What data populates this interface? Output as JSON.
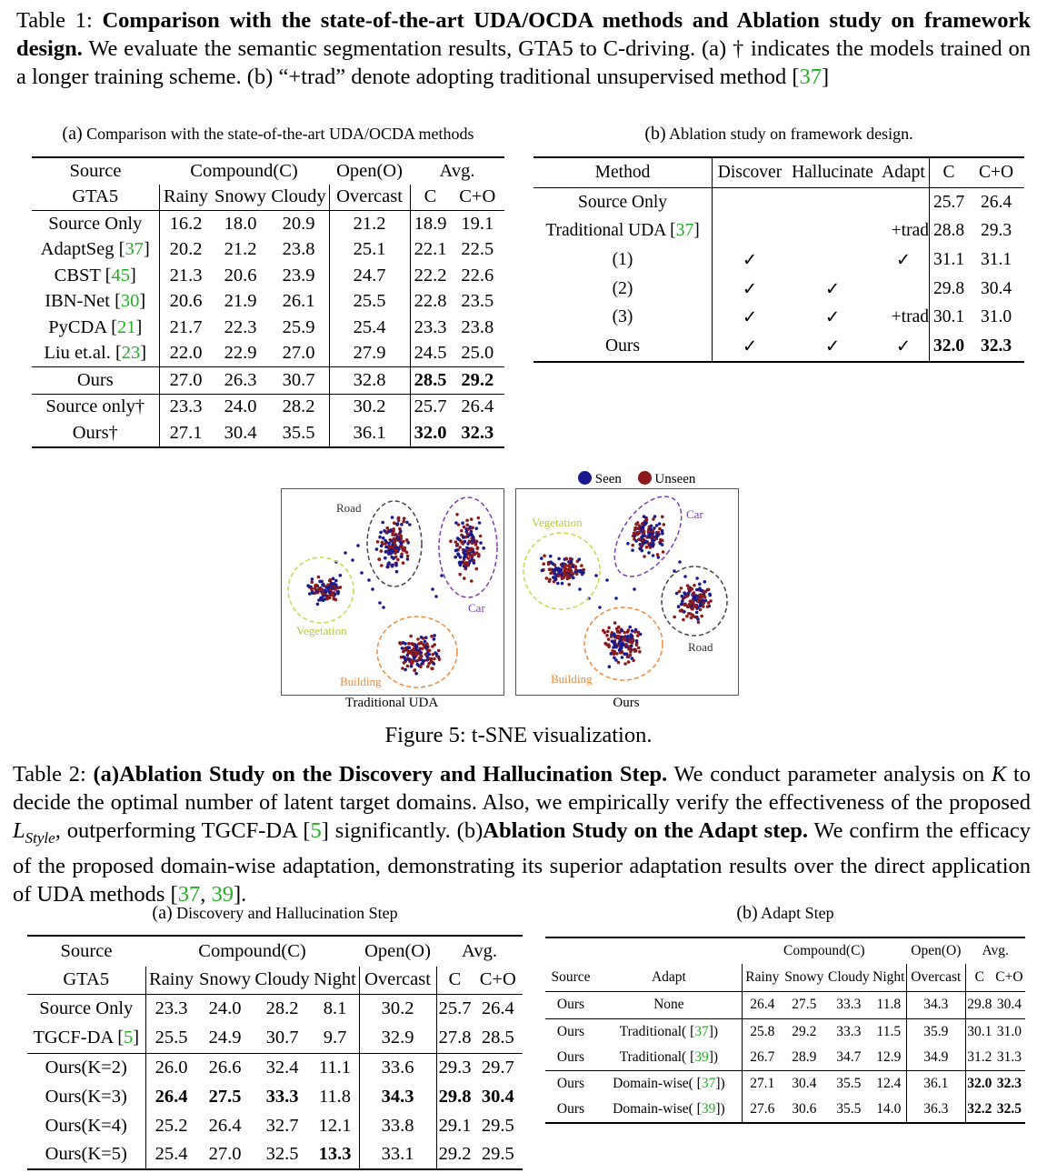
{
  "table1": {
    "caption": {
      "prefix": "Table 1: ",
      "bold": "Comparison with the state-of-the-art UDA/OCDA methods and Ablation study on framework design.",
      "text1": " We evaluate the semantic segmentation results, GTA5 to C-driving. (a) † indicates the models trained on a longer training scheme. (b) “+trad” denote adopting traditional unsupervised method [",
      "cite": "37",
      "text2": "]"
    },
    "a": {
      "caption_label": "(a)",
      "caption": " Comparison with the state-of-the-art UDA/OCDA methods",
      "header1": {
        "source": "Source",
        "compound": "Compound(C)",
        "open": "Open(O)",
        "avg": "Avg."
      },
      "header2": {
        "source": "GTA5",
        "rainy": "Rainy",
        "snowy": "Snowy",
        "cloudy": "Cloudy",
        "overcast": "Overcast",
        "c": "C",
        "co": "C+O"
      },
      "rows": [
        {
          "method": "Source Only",
          "cite": "",
          "vals": [
            "16.2",
            "18.0",
            "20.9",
            "21.2",
            "18.9",
            "19.1"
          ]
        },
        {
          "method": "AdaptSeg [",
          "cite": "37",
          "close": "]",
          "vals": [
            "20.2",
            "21.2",
            "23.8",
            "25.1",
            "22.1",
            "22.5"
          ]
        },
        {
          "method": "CBST [",
          "cite": "45",
          "close": "]",
          "vals": [
            "21.3",
            "20.6",
            "23.9",
            "24.7",
            "22.2",
            "22.6"
          ]
        },
        {
          "method": "IBN-Net [",
          "cite": "30",
          "close": "]",
          "vals": [
            "20.6",
            "21.9",
            "26.1",
            "25.5",
            "22.8",
            "23.5"
          ]
        },
        {
          "method": "PyCDA [",
          "cite": "21",
          "close": "]",
          "vals": [
            "21.7",
            "22.3",
            "25.9",
            "25.4",
            "23.3",
            "23.8"
          ]
        },
        {
          "method": "Liu et.al. [",
          "cite": "23",
          "close": "]",
          "vals": [
            "22.0",
            "22.9",
            "27.0",
            "27.9",
            "24.5",
            "25.0"
          ]
        },
        {
          "method": "Ours",
          "cite": "",
          "vals": [
            "27.0",
            "26.3",
            "30.7",
            "32.8",
            "28.5",
            "29.2"
          ]
        },
        {
          "method": "Source only†",
          "cite": "",
          "vals": [
            "23.3",
            "24.0",
            "28.2",
            "30.2",
            "25.7",
            "26.4"
          ]
        },
        {
          "method": "Ours†",
          "cite": "",
          "vals": [
            "27.1",
            "30.4",
            "35.5",
            "36.1",
            "32.0",
            "32.3"
          ]
        }
      ]
    },
    "b": {
      "caption_label": "(b)",
      "caption": " Ablation study on framework design.",
      "header": {
        "method": "Method",
        "discover": "Discover",
        "hallucinate": "Hallucinate",
        "adapt": "Adapt",
        "c": "C",
        "co": "C+O"
      },
      "rows": [
        {
          "method": "Source Only",
          "cite": "",
          "d": "",
          "h": "",
          "a": "",
          "c": "25.7",
          "co": "26.4"
        },
        {
          "method": "Traditional UDA [",
          "cite": "37",
          "close": "]",
          "d": "",
          "h": "",
          "a": "+trad",
          "c": "28.8",
          "co": "29.3"
        },
        {
          "method": "(1)",
          "cite": "",
          "d": "✓",
          "h": "",
          "a": "✓",
          "c": "31.1",
          "co": "31.1"
        },
        {
          "method": "(2)",
          "cite": "",
          "d": "✓",
          "h": "✓",
          "a": "",
          "c": "29.8",
          "co": "30.4"
        },
        {
          "method": "(3)",
          "cite": "",
          "d": "✓",
          "h": "✓",
          "a": "+trad",
          "c": "30.1",
          "co": "31.0"
        },
        {
          "method": "Ours",
          "cite": "",
          "d": "✓",
          "h": "✓",
          "a": "✓",
          "c": "32.0",
          "co": "32.3"
        }
      ]
    }
  },
  "figure5": {
    "legend": {
      "seen": "Seen",
      "unseen": "Unseen",
      "seen_color": "#1a1a8c",
      "unseen_color": "#8c1a1a"
    },
    "left": {
      "title": "Traditional UDA",
      "road": "Road",
      "car": "Car",
      "vegetation": "Vegetation",
      "building": "Building"
    },
    "right": {
      "title": "Ours",
      "road": "Road",
      "car": "Car",
      "vegetation": "Vegetation",
      "building": "Building"
    },
    "caption": "Figure 5: t-SNE visualization.",
    "colors": {
      "road": "#444444",
      "car": "#7b3fb0",
      "vegetation": "#c8d84a",
      "building": "#f08a3a"
    }
  },
  "table2": {
    "caption": {
      "prefix": "Table 2: ",
      "bold1": "(a)Ablation Study on the Discovery and Hallucination Step.",
      "text1": " We conduct parameter analysis on ",
      "k": "K",
      "text2": " to decide the optimal number of latent target domains. Also, we empirically verify the effectiveness of the proposed ",
      "lstyle": "L",
      "lstyle_sub": "Style",
      "text3": ", outperforming TGCF-DA [",
      "cite1": "5",
      "text4": "] significantly. (b)",
      "bold2": "Ablation Study on the Adapt step.",
      "text5": " We confirm the efficacy of the proposed domain-wise adaptation, demonstrating its superior adaptation results over the direct application of UDA methods [",
      "cite2": "37",
      "sep": ", ",
      "cite3": "39",
      "text6": "]."
    },
    "a": {
      "caption_label": "(a)",
      "caption": " Discovery and Hallucination Step",
      "header1": {
        "source": "Source",
        "compound": "Compound(C)",
        "open": "Open(O)",
        "avg": "Avg."
      },
      "header2": {
        "source": "GTA5",
        "rainy": "Rainy",
        "snowy": "Snowy",
        "cloudy": "Cloudy",
        "night": "Night",
        "overcast": "Overcast",
        "c": "C",
        "co": "C+O"
      },
      "rows": [
        {
          "method": "Source Only",
          "cite": "",
          "vals": [
            "23.3",
            "24.0",
            "28.2",
            "8.1",
            "30.2",
            "25.7",
            "26.4"
          ]
        },
        {
          "method": "TGCF-DA [",
          "cite": "5",
          "close": "]",
          "vals": [
            "25.5",
            "24.9",
            "30.7",
            "9.7",
            "32.9",
            "27.8",
            "28.5"
          ]
        },
        {
          "method": "Ours(K=2)",
          "cite": "",
          "vals": [
            "26.0",
            "26.6",
            "32.4",
            "11.1",
            "33.6",
            "29.3",
            "29.7"
          ]
        },
        {
          "method": "Ours(K=3)",
          "cite": "",
          "vals": [
            "26.4",
            "27.5",
            "33.3",
            "11.8",
            "34.3",
            "29.8",
            "30.4"
          ]
        },
        {
          "method": "Ours(K=4)",
          "cite": "",
          "vals": [
            "25.2",
            "26.4",
            "32.7",
            "12.1",
            "33.8",
            "29.1",
            "29.5"
          ]
        },
        {
          "method": "Ours(K=5)",
          "cite": "",
          "vals": [
            "25.4",
            "27.0",
            "32.5",
            "13.3",
            "33.1",
            "29.2",
            "29.5"
          ]
        }
      ]
    },
    "b": {
      "caption_label": "(b)",
      "caption": " Adapt Step",
      "header1": {
        "compound": "Compound(C)",
        "open": "Open(O)",
        "avg": "Avg."
      },
      "header2": {
        "source": "Source",
        "adapt": "Adapt",
        "rainy": "Rainy",
        "snowy": "Snowy",
        "cloudy": "Cloudy",
        "night": "Night",
        "overcast": "Overcast",
        "c": "C",
        "co": "C+O"
      },
      "rows": [
        {
          "source": "Ours",
          "adapt": "None",
          "cite": "",
          "vals": [
            "26.4",
            "27.5",
            "33.3",
            "11.8",
            "34.3",
            "29.8",
            "30.4"
          ]
        },
        {
          "source": "Ours",
          "adapt": "Traditional( [",
          "cite": "37",
          "close": "])",
          "vals": [
            "25.8",
            "29.2",
            "33.3",
            "11.5",
            "35.9",
            "30.1",
            "31.0"
          ]
        },
        {
          "source": "Ours",
          "adapt": "Traditional( [",
          "cite": "39",
          "close": "])",
          "vals": [
            "26.7",
            "28.9",
            "34.7",
            "12.9",
            "34.9",
            "31.2",
            "31.3"
          ]
        },
        {
          "source": "Ours",
          "adapt": "Domain-wise( [",
          "cite": "37",
          "close": "])",
          "vals": [
            "27.1",
            "30.4",
            "35.5",
            "12.4",
            "36.1",
            "32.0",
            "32.3"
          ]
        },
        {
          "source": "Ours",
          "adapt": "Domain-wise( [",
          "cite": "39",
          "close": "])",
          "vals": [
            "27.6",
            "30.6",
            "35.5",
            "14.0",
            "36.3",
            "32.2",
            "32.5"
          ]
        }
      ]
    }
  }
}
